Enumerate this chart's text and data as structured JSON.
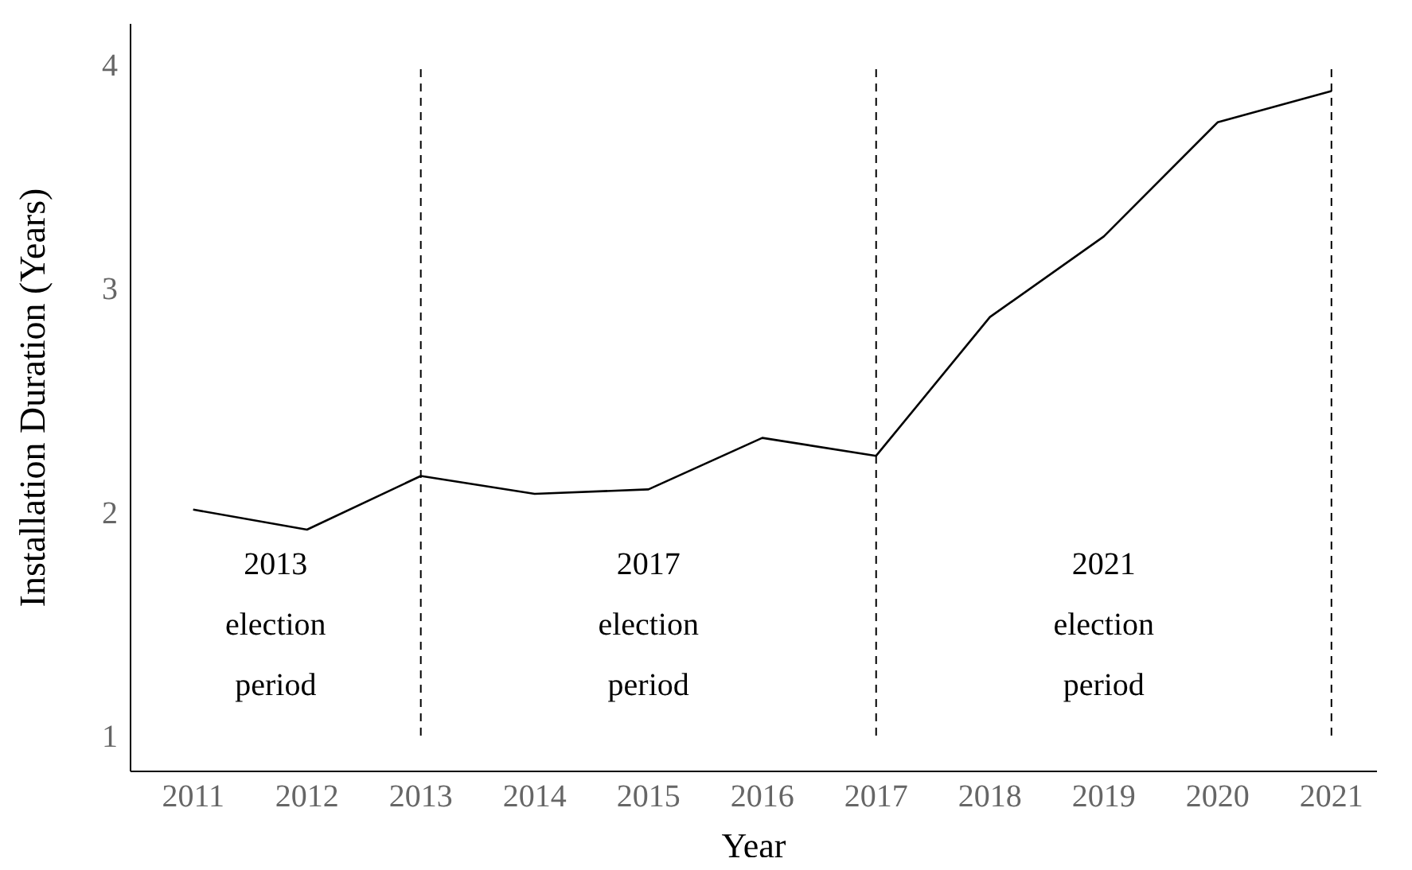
{
  "chart_data": {
    "type": "line",
    "xlabel": "Year",
    "ylabel": "Installation Duration (Years)",
    "x": [
      2011,
      2012,
      2013,
      2014,
      2015,
      2016,
      2017,
      2018,
      2019,
      2020,
      2021
    ],
    "series": [
      {
        "color": "#000000",
        "values": [
          2.01,
          1.92,
          2.16,
          2.08,
          2.1,
          2.33,
          2.25,
          2.87,
          3.23,
          3.74,
          3.88
        ]
      }
    ],
    "xlim": [
      2010.45,
      2021.4
    ],
    "xticks": [
      2011,
      2012,
      2013,
      2014,
      2015,
      2016,
      2017,
      2018,
      2019,
      2020,
      2021
    ],
    "ylim": [
      0.84,
      4.18
    ],
    "yticks": [
      1,
      2,
      3,
      4
    ],
    "ref_lines": [
      {
        "axis": "x",
        "value": 2013,
        "line_style": "dashed",
        "color": "#000000"
      },
      {
        "axis": "x",
        "value": 2017,
        "line_style": "dashed",
        "color": "#000000"
      },
      {
        "axis": "x",
        "value": 2021,
        "line_style": "dashed",
        "color": "#000000"
      }
    ],
    "annotations": [
      "2013 election period",
      "2017 election period",
      "2021 election period"
    ],
    "marker": "none",
    "line_style": "solid"
  }
}
